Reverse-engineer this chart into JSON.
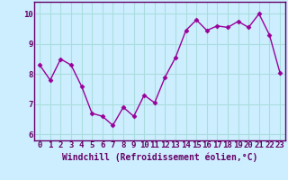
{
  "x": [
    0,
    1,
    2,
    3,
    4,
    5,
    6,
    7,
    8,
    9,
    10,
    11,
    12,
    13,
    14,
    15,
    16,
    17,
    18,
    19,
    20,
    21,
    22,
    23
  ],
  "y": [
    8.3,
    7.8,
    8.5,
    8.3,
    7.6,
    6.7,
    6.6,
    6.3,
    6.9,
    6.6,
    7.3,
    7.05,
    7.9,
    8.55,
    9.45,
    9.8,
    9.45,
    9.6,
    9.55,
    9.75,
    9.55,
    10.0,
    9.3,
    8.05
  ],
  "line_color": "#990099",
  "marker": "D",
  "marker_size": 2.5,
  "bg_color": "#cceeff",
  "grid_color": "#aadddd",
  "xlabel": "Windchill (Refroidissement éolien,°C)",
  "xlim": [
    -0.5,
    23.5
  ],
  "ylim": [
    5.8,
    10.4
  ],
  "yticks": [
    6,
    7,
    8,
    9,
    10
  ],
  "xticks": [
    0,
    1,
    2,
    3,
    4,
    5,
    6,
    7,
    8,
    9,
    10,
    11,
    12,
    13,
    14,
    15,
    16,
    17,
    18,
    19,
    20,
    21,
    22,
    23
  ],
  "tick_label_size": 6.5,
  "xlabel_size": 7,
  "tick_color": "#660066",
  "label_color": "#660066",
  "spine_color": "#660066"
}
